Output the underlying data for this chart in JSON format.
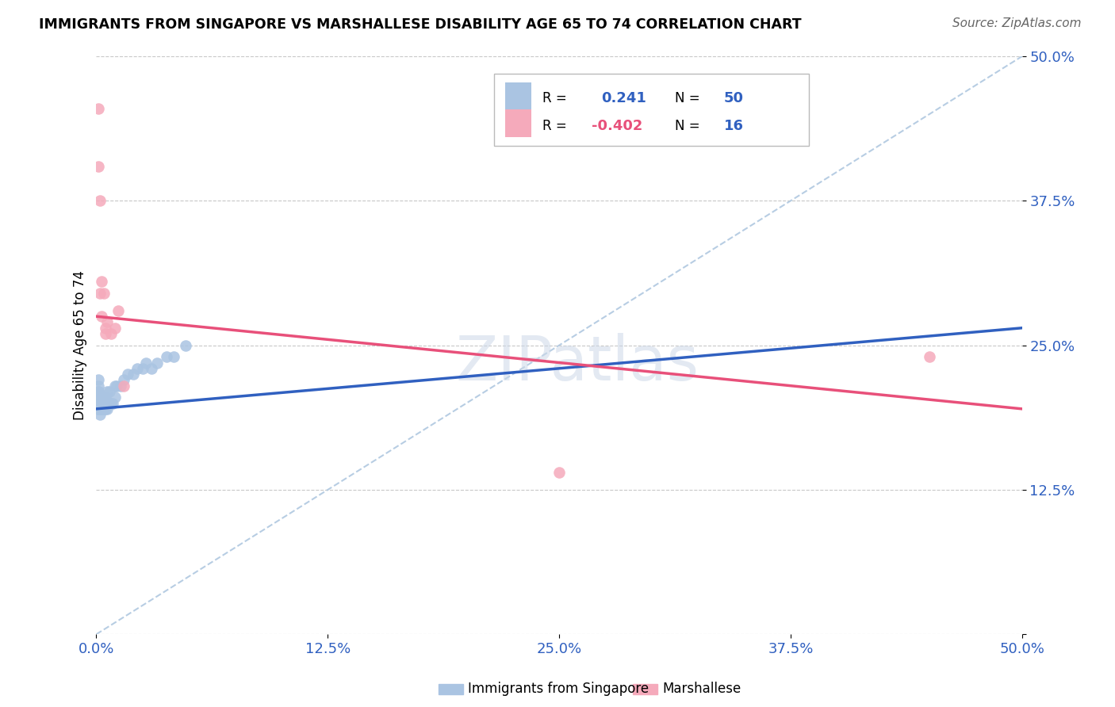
{
  "title": "IMMIGRANTS FROM SINGAPORE VS MARSHALLESE DISABILITY AGE 65 TO 74 CORRELATION CHART",
  "source": "Source: ZipAtlas.com",
  "ylabel": "Disability Age 65 to 74",
  "xlim": [
    0.0,
    0.5
  ],
  "ylim": [
    0.0,
    0.5
  ],
  "ytick_values": [
    0.0,
    0.125,
    0.25,
    0.375,
    0.5
  ],
  "ytick_labels": [
    "",
    "12.5%",
    "25.0%",
    "37.5%",
    "50.0%"
  ],
  "xtick_values": [
    0.0,
    0.125,
    0.25,
    0.375,
    0.5
  ],
  "xtick_labels": [
    "0.0%",
    "12.5%",
    "25.0%",
    "37.5%",
    "50.0%"
  ],
  "grid_color": "#c8c8c8",
  "background_color": "#ffffff",
  "R_singapore": 0.241,
  "N_singapore": 50,
  "R_marshallese": -0.402,
  "N_marshallese": 16,
  "singapore_color": "#aac4e2",
  "marshallese_color": "#f5aabb",
  "singapore_line_color": "#3060c0",
  "marshallese_line_color": "#e8507a",
  "diagonal_color": "#b0c8e0",
  "axis_label_color": "#3060c0",
  "singapore_points_x": [
    0.001,
    0.001,
    0.001,
    0.001,
    0.001,
    0.001,
    0.001,
    0.001,
    0.001,
    0.001,
    0.002,
    0.002,
    0.002,
    0.002,
    0.002,
    0.002,
    0.002,
    0.002,
    0.003,
    0.003,
    0.003,
    0.003,
    0.003,
    0.004,
    0.004,
    0.004,
    0.005,
    0.005,
    0.005,
    0.006,
    0.006,
    0.007,
    0.007,
    0.008,
    0.009,
    0.01,
    0.01,
    0.011,
    0.013,
    0.015,
    0.017,
    0.02,
    0.022,
    0.025,
    0.027,
    0.03,
    0.033,
    0.038,
    0.042,
    0.048
  ],
  "singapore_points_y": [
    0.195,
    0.21,
    0.22,
    0.2,
    0.215,
    0.195,
    0.205,
    0.21,
    0.195,
    0.2,
    0.195,
    0.2,
    0.195,
    0.19,
    0.2,
    0.195,
    0.205,
    0.195,
    0.195,
    0.2,
    0.195,
    0.2,
    0.205,
    0.195,
    0.2,
    0.205,
    0.195,
    0.2,
    0.205,
    0.195,
    0.21,
    0.2,
    0.21,
    0.2,
    0.2,
    0.205,
    0.215,
    0.215,
    0.215,
    0.22,
    0.225,
    0.225,
    0.23,
    0.23,
    0.235,
    0.23,
    0.235,
    0.24,
    0.24,
    0.25
  ],
  "marshallese_points_x": [
    0.001,
    0.001,
    0.002,
    0.002,
    0.003,
    0.003,
    0.004,
    0.005,
    0.005,
    0.006,
    0.008,
    0.01,
    0.25,
    0.45,
    0.015,
    0.012
  ],
  "marshallese_points_y": [
    0.455,
    0.405,
    0.375,
    0.295,
    0.305,
    0.275,
    0.295,
    0.26,
    0.265,
    0.27,
    0.26,
    0.265,
    0.14,
    0.24,
    0.215,
    0.28
  ],
  "sg_line_x0": 0.0,
  "sg_line_x1": 0.5,
  "sg_line_y0": 0.195,
  "sg_line_y1": 0.265,
  "ma_line_x0": 0.0,
  "ma_line_x1": 0.5,
  "ma_line_y0": 0.275,
  "ma_line_y1": 0.195
}
